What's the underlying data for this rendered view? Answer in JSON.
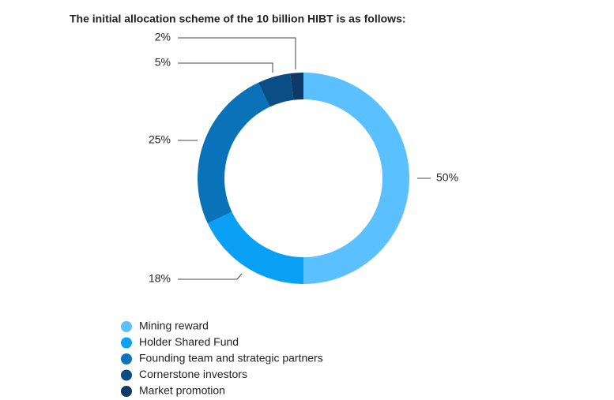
{
  "chart_data": {
    "type": "donut",
    "title": "The initial allocation scheme of the 10 billion HIBT is as follows:",
    "categories": [
      "Mining reward",
      "Holder Shared Fund",
      "Founding team and strategic partners",
      "Cornerstone investors",
      "Market promotion"
    ],
    "values": [
      50,
      18,
      25,
      5,
      2
    ],
    "value_labels": [
      "50%",
      "18%",
      "25%",
      "5%",
      "2%"
    ],
    "colors": [
      "#5bc0ff",
      "#0aa0f5",
      "#0a72b8",
      "#0b4e86",
      "#0d3a66"
    ]
  }
}
